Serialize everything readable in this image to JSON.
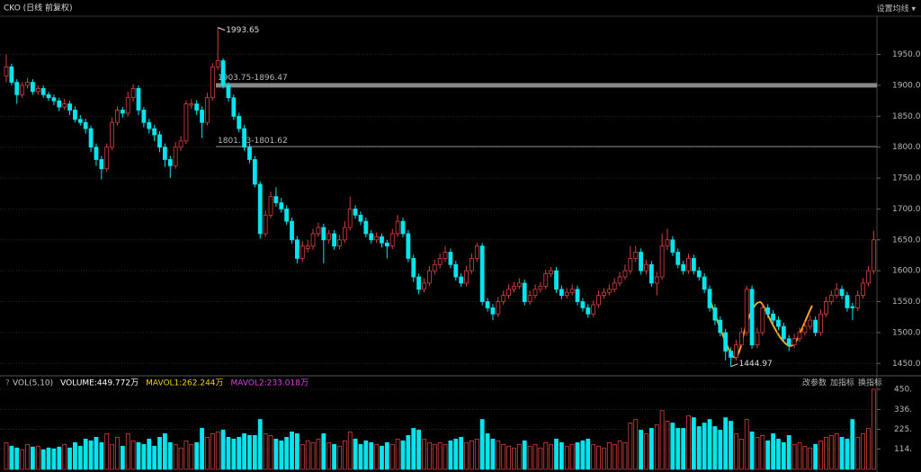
{
  "chart_data": {
    "type": "candlestick",
    "title": "CKO (日线 前复权)",
    "menu": "设置均线 ▾",
    "up_color": "#d8403f",
    "down_color": "#00e5ee",
    "grid": true,
    "ylim": [
      1430,
      2012
    ],
    "yticks": [
      {
        "value": 1450,
        "label": "1450.00"
      },
      {
        "value": 1500,
        "label": "1500.00"
      },
      {
        "value": 1550,
        "label": "1550.00"
      },
      {
        "value": 1600,
        "label": "1600.00"
      },
      {
        "value": 1650,
        "label": "1650.00"
      },
      {
        "value": 1700,
        "label": "1700.00"
      },
      {
        "value": 1750,
        "label": "1750.00"
      },
      {
        "value": 1800,
        "label": "1800.00"
      },
      {
        "value": 1850,
        "label": "1850.00"
      },
      {
        "value": 1900,
        "label": "1900.00"
      },
      {
        "value": 1950,
        "label": "1950.00"
      }
    ],
    "levels": [
      {
        "label": "1903.75-1896.47",
        "high": 1903.75,
        "low": 1896.47
      },
      {
        "label": "1801.73-1801.62",
        "high": 1801.73,
        "low": 1801.62
      }
    ],
    "high_index": 40,
    "low_index": 137,
    "candles": [
      [
        1915,
        1950,
        1905,
        1930
      ],
      [
        1930,
        1935,
        1900,
        1905
      ],
      [
        1905,
        1910,
        1870,
        1885
      ],
      [
        1885,
        1905,
        1880,
        1900
      ],
      [
        1900,
        1912,
        1895,
        1905
      ],
      [
        1905,
        1910,
        1885,
        1890
      ],
      [
        1890,
        1900,
        1885,
        1895
      ],
      [
        1895,
        1900,
        1880,
        1885
      ],
      [
        1885,
        1890,
        1875,
        1880
      ],
      [
        1880,
        1885,
        1868,
        1875
      ],
      [
        1875,
        1880,
        1858,
        1865
      ],
      [
        1865,
        1878,
        1860,
        1870
      ],
      [
        1870,
        1875,
        1852,
        1860
      ],
      [
        1860,
        1866,
        1840,
        1845
      ],
      [
        1845,
        1852,
        1835,
        1840
      ],
      [
        1840,
        1846,
        1822,
        1830
      ],
      [
        1830,
        1835,
        1792,
        1800
      ],
      [
        1800,
        1806,
        1770,
        1780
      ],
      [
        1780,
        1786,
        1748,
        1765
      ],
      [
        1765,
        1806,
        1760,
        1800
      ],
      [
        1800,
        1848,
        1795,
        1840
      ],
      [
        1840,
        1866,
        1835,
        1860
      ],
      [
        1860,
        1865,
        1848,
        1855
      ],
      [
        1855,
        1890,
        1850,
        1880
      ],
      [
        1880,
        1902,
        1874,
        1895
      ],
      [
        1895,
        1900,
        1852,
        1860
      ],
      [
        1860,
        1865,
        1832,
        1840
      ],
      [
        1840,
        1846,
        1822,
        1830
      ],
      [
        1830,
        1836,
        1810,
        1820
      ],
      [
        1820,
        1826,
        1792,
        1800
      ],
      [
        1800,
        1806,
        1768,
        1780
      ],
      [
        1780,
        1786,
        1750,
        1770
      ],
      [
        1770,
        1808,
        1765,
        1800
      ],
      [
        1800,
        1818,
        1794,
        1810
      ],
      [
        1810,
        1876,
        1805,
        1870
      ],
      [
        1868,
        1878,
        1862,
        1870
      ],
      [
        1870,
        1876,
        1852,
        1860
      ],
      [
        1860,
        1866,
        1815,
        1840
      ],
      [
        1840,
        1888,
        1835,
        1880
      ],
      [
        1880,
        1936,
        1875,
        1930
      ],
      [
        1930,
        1993.65,
        1925,
        1940
      ],
      [
        1940,
        1944,
        1895,
        1900
      ],
      [
        1900,
        1905,
        1874,
        1880
      ],
      [
        1880,
        1885,
        1844,
        1850
      ],
      [
        1850,
        1856,
        1824,
        1830
      ],
      [
        1830,
        1836,
        1794,
        1800
      ],
      [
        1800,
        1806,
        1774,
        1780
      ],
      [
        1780,
        1786,
        1735,
        1740
      ],
      [
        1740,
        1745,
        1652,
        1660
      ],
      [
        1660,
        1698,
        1655,
        1690
      ],
      [
        1690,
        1728,
        1685,
        1720
      ],
      [
        1720,
        1735,
        1704,
        1710
      ],
      [
        1710,
        1718,
        1694,
        1700
      ],
      [
        1700,
        1706,
        1674,
        1680
      ],
      [
        1680,
        1686,
        1644,
        1650
      ],
      [
        1650,
        1656,
        1612,
        1620
      ],
      [
        1620,
        1648,
        1615,
        1640
      ],
      [
        1636,
        1650,
        1630,
        1640
      ],
      [
        1640,
        1668,
        1634,
        1660
      ],
      [
        1660,
        1678,
        1655,
        1670
      ],
      [
        1670,
        1676,
        1612,
        1650
      ],
      [
        1650,
        1666,
        1644,
        1660
      ],
      [
        1660,
        1666,
        1634,
        1640
      ],
      [
        1640,
        1658,
        1635,
        1650
      ],
      [
        1650,
        1680,
        1645,
        1670
      ],
      [
        1670,
        1720,
        1665,
        1700
      ],
      [
        1700,
        1706,
        1684,
        1690
      ],
      [
        1690,
        1696,
        1674,
        1680
      ],
      [
        1680,
        1686,
        1654,
        1660
      ],
      [
        1660,
        1666,
        1644,
        1650
      ],
      [
        1650,
        1662,
        1645,
        1655
      ],
      [
        1655,
        1660,
        1638,
        1645
      ],
      [
        1645,
        1650,
        1620,
        1640
      ],
      [
        1640,
        1668,
        1635,
        1660
      ],
      [
        1660,
        1690,
        1655,
        1680
      ],
      [
        1680,
        1686,
        1654,
        1660
      ],
      [
        1660,
        1666,
        1614,
        1620
      ],
      [
        1620,
        1626,
        1582,
        1590
      ],
      [
        1590,
        1596,
        1562,
        1570
      ],
      [
        1570,
        1588,
        1565,
        1580
      ],
      [
        1580,
        1608,
        1575,
        1600
      ],
      [
        1600,
        1618,
        1594,
        1610
      ],
      [
        1610,
        1628,
        1604,
        1620
      ],
      [
        1620,
        1640,
        1614,
        1630
      ],
      [
        1630,
        1636,
        1604,
        1610
      ],
      [
        1610,
        1616,
        1584,
        1590
      ],
      [
        1590,
        1596,
        1574,
        1580
      ],
      [
        1580,
        1608,
        1575,
        1600
      ],
      [
        1600,
        1628,
        1595,
        1620
      ],
      [
        1620,
        1645,
        1615,
        1640
      ],
      [
        1640,
        1645,
        1544,
        1550
      ],
      [
        1550,
        1556,
        1534,
        1540
      ],
      [
        1540,
        1546,
        1520,
        1530
      ],
      [
        1530,
        1558,
        1525,
        1550
      ],
      [
        1550,
        1568,
        1545,
        1560
      ],
      [
        1560,
        1578,
        1555,
        1570
      ],
      [
        1570,
        1582,
        1565,
        1575
      ],
      [
        1575,
        1588,
        1570,
        1580
      ],
      [
        1580,
        1586,
        1544,
        1550
      ],
      [
        1550,
        1568,
        1545,
        1560
      ],
      [
        1560,
        1578,
        1555,
        1570
      ],
      [
        1570,
        1582,
        1565,
        1575
      ],
      [
        1575,
        1602,
        1570,
        1595
      ],
      [
        1595,
        1606,
        1590,
        1600
      ],
      [
        1600,
        1606,
        1564,
        1570
      ],
      [
        1570,
        1576,
        1554,
        1560
      ],
      [
        1560,
        1572,
        1555,
        1565
      ],
      [
        1565,
        1578,
        1560,
        1570
      ],
      [
        1570,
        1576,
        1544,
        1550
      ],
      [
        1550,
        1556,
        1534,
        1540
      ],
      [
        1540,
        1546,
        1524,
        1530
      ],
      [
        1530,
        1552,
        1525,
        1545
      ],
      [
        1545,
        1568,
        1540,
        1560
      ],
      [
        1560,
        1572,
        1555,
        1565
      ],
      [
        1565,
        1578,
        1560,
        1570
      ],
      [
        1570,
        1588,
        1565,
        1580
      ],
      [
        1580,
        1598,
        1575,
        1590
      ],
      [
        1590,
        1610,
        1585,
        1600
      ],
      [
        1600,
        1640,
        1595,
        1620
      ],
      [
        1620,
        1640,
        1614,
        1630
      ],
      [
        1630,
        1636,
        1594,
        1600
      ],
      [
        1600,
        1618,
        1594,
        1610
      ],
      [
        1610,
        1616,
        1574,
        1580
      ],
      [
        1580,
        1598,
        1560,
        1590
      ],
      [
        1590,
        1660,
        1585,
        1640
      ],
      [
        1640,
        1668,
        1634,
        1650
      ],
      [
        1650,
        1656,
        1624,
        1630
      ],
      [
        1630,
        1636,
        1604,
        1610
      ],
      [
        1610,
        1616,
        1594,
        1600
      ],
      [
        1600,
        1628,
        1595,
        1620
      ],
      [
        1620,
        1626,
        1594,
        1600
      ],
      [
        1600,
        1606,
        1584,
        1590
      ],
      [
        1590,
        1596,
        1564,
        1570
      ],
      [
        1570,
        1576,
        1534,
        1540
      ],
      [
        1540,
        1546,
        1512,
        1520
      ],
      [
        1520,
        1526,
        1494,
        1500
      ],
      [
        1500,
        1506,
        1455,
        1470
      ],
      [
        1470,
        1476,
        1444.97,
        1460
      ],
      [
        1460,
        1488,
        1455,
        1480
      ],
      [
        1480,
        1508,
        1475,
        1500
      ],
      [
        1500,
        1576,
        1495,
        1570
      ],
      [
        1570,
        1576,
        1474,
        1480
      ],
      [
        1480,
        1508,
        1475,
        1500
      ],
      [
        1500,
        1548,
        1495,
        1540
      ],
      [
        1540,
        1546,
        1524,
        1530
      ],
      [
        1530,
        1536,
        1514,
        1520
      ],
      [
        1520,
        1526,
        1504,
        1510
      ],
      [
        1510,
        1516,
        1484,
        1490
      ],
      [
        1490,
        1496,
        1470,
        1480
      ],
      [
        1480,
        1498,
        1475,
        1490
      ],
      [
        1490,
        1508,
        1485,
        1500
      ],
      [
        1500,
        1518,
        1495,
        1510
      ],
      [
        1510,
        1528,
        1505,
        1520
      ],
      [
        1520,
        1526,
        1494,
        1500
      ],
      [
        1500,
        1538,
        1495,
        1530
      ],
      [
        1530,
        1558,
        1525,
        1550
      ],
      [
        1550,
        1568,
        1545,
        1560
      ],
      [
        1560,
        1580,
        1555,
        1570
      ],
      [
        1570,
        1576,
        1554,
        1560
      ],
      [
        1560,
        1566,
        1534,
        1540
      ],
      [
        1542,
        1548,
        1520,
        1540
      ],
      [
        1540,
        1568,
        1535,
        1560
      ],
      [
        1560,
        1588,
        1555,
        1580
      ],
      [
        1580,
        1608,
        1575,
        1600
      ],
      [
        1600,
        1665,
        1595,
        1650
      ]
    ],
    "volume": {
      "legend": [
        {
          "name": "VOL(5,10)",
          "color": "#c8c8c8"
        },
        {
          "name": "VOLUME:449.772万",
          "color": "#ffffff"
        },
        {
          "name": "MAVOL1:262.244万",
          "color": "#f0d000"
        },
        {
          "name": "MAVOL2:233.018万",
          "color": "#e040e0"
        }
      ],
      "buttons": [
        "改参数",
        "加指标",
        "换指标"
      ],
      "ylim": [
        0,
        475
      ],
      "yticks": [
        {
          "value": 114,
          "label": "114."
        },
        {
          "value": 225,
          "label": "225."
        },
        {
          "value": 336,
          "label": "336."
        },
        {
          "value": 450,
          "label": "450."
        }
      ],
      "values": [
        150,
        130,
        120,
        110,
        140,
        125,
        130,
        110,
        120,
        115,
        125,
        140,
        120,
        150,
        130,
        170,
        160,
        180,
        150,
        200,
        140,
        180,
        130,
        200,
        160,
        150,
        140,
        170,
        130,
        180,
        200,
        150,
        140,
        120,
        160,
        140,
        150,
        230,
        180,
        200,
        210,
        220,
        180,
        170,
        180,
        200,
        190,
        190,
        280,
        200,
        190,
        170,
        160,
        180,
        210,
        200,
        140,
        160,
        150,
        170,
        200,
        150,
        140,
        130,
        160,
        210,
        170,
        140,
        160,
        150,
        140,
        130,
        150,
        140,
        170,
        160,
        190,
        230,
        220,
        170,
        150,
        140,
        150,
        140,
        160,
        170,
        180,
        150,
        160,
        170,
        280,
        200,
        170,
        160,
        140,
        130,
        120,
        140,
        160,
        130,
        140,
        120,
        150,
        140,
        170,
        150,
        130,
        140,
        150,
        160,
        170,
        140,
        130,
        120,
        150,
        140,
        160,
        150,
        260,
        280,
        220,
        200,
        230,
        250,
        330,
        270,
        260,
        230,
        230,
        300,
        290,
        240,
        260,
        280,
        240,
        220,
        290,
        270,
        200,
        170,
        280,
        210,
        180,
        190,
        160,
        200,
        170,
        150,
        190,
        140,
        150,
        130,
        120,
        140,
        160,
        180,
        190,
        200,
        180,
        170,
        280,
        180,
        200,
        230,
        449.772
      ]
    }
  }
}
